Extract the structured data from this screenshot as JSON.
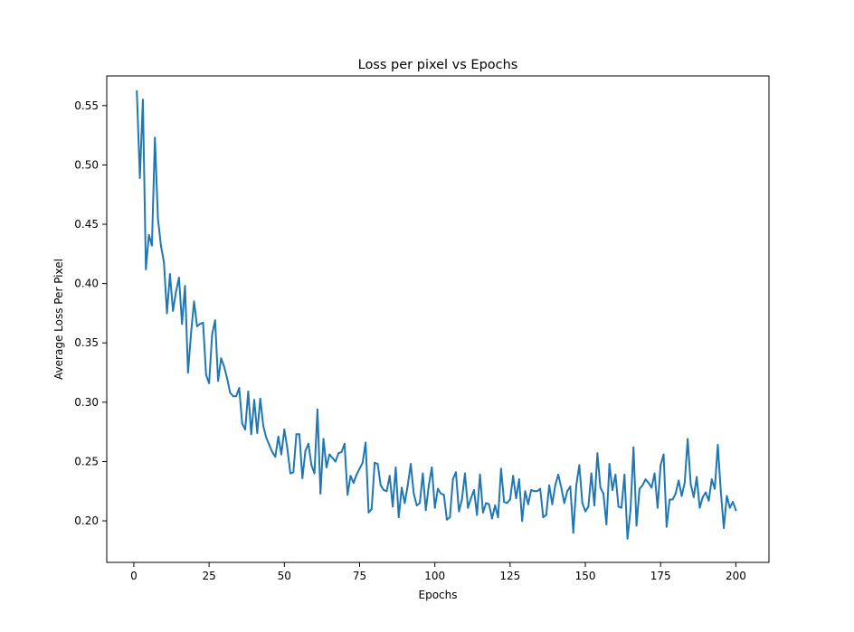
{
  "chart_data": {
    "type": "line",
    "title": "Loss per pixel vs Epochs",
    "xlabel": "Epochs",
    "ylabel": "Average Loss Per Pixel",
    "xlim": [
      -9,
      211
    ],
    "ylim": [
      0.165,
      0.575
    ],
    "xticks": [
      0,
      25,
      50,
      75,
      100,
      125,
      150,
      175,
      200
    ],
    "yticks": [
      0.2,
      0.25,
      0.3,
      0.35,
      0.4,
      0.45,
      0.5,
      0.55
    ],
    "xtick_labels": [
      "0",
      "25",
      "50",
      "75",
      "100",
      "125",
      "150",
      "175",
      "200"
    ],
    "ytick_labels": [
      "0.20",
      "0.25",
      "0.30",
      "0.35",
      "0.40",
      "0.45",
      "0.50",
      "0.55"
    ],
    "grid": false,
    "legend": null,
    "line_color": "#1f77b4",
    "x_start": 1,
    "x_step": 1,
    "values": [
      0.562,
      0.489,
      0.555,
      0.412,
      0.441,
      0.432,
      0.523,
      0.455,
      0.432,
      0.418,
      0.375,
      0.408,
      0.377,
      0.393,
      0.405,
      0.366,
      0.398,
      0.325,
      0.358,
      0.385,
      0.364,
      0.366,
      0.367,
      0.323,
      0.316,
      0.357,
      0.369,
      0.318,
      0.337,
      0.33,
      0.32,
      0.308,
      0.305,
      0.305,
      0.312,
      0.282,
      0.277,
      0.309,
      0.273,
      0.302,
      0.274,
      0.303,
      0.28,
      0.27,
      0.264,
      0.258,
      0.254,
      0.271,
      0.256,
      0.277,
      0.261,
      0.24,
      0.241,
      0.273,
      0.273,
      0.236,
      0.259,
      0.265,
      0.247,
      0.24,
      0.294,
      0.223,
      0.269,
      0.245,
      0.256,
      0.253,
      0.25,
      0.257,
      0.258,
      0.265,
      0.222,
      0.238,
      0.232,
      0.239,
      0.244,
      0.249,
      0.266,
      0.207,
      0.21,
      0.249,
      0.248,
      0.23,
      0.226,
      0.225,
      0.238,
      0.212,
      0.245,
      0.203,
      0.228,
      0.215,
      0.23,
      0.248,
      0.223,
      0.213,
      0.215,
      0.24,
      0.209,
      0.23,
      0.245,
      0.211,
      0.227,
      0.223,
      0.222,
      0.201,
      0.203,
      0.235,
      0.241,
      0.208,
      0.218,
      0.24,
      0.211,
      0.219,
      0.226,
      0.205,
      0.239,
      0.207,
      0.215,
      0.214,
      0.202,
      0.213,
      0.203,
      0.244,
      0.216,
      0.215,
      0.218,
      0.238,
      0.219,
      0.235,
      0.2,
      0.225,
      0.214,
      0.226,
      0.225,
      0.225,
      0.227,
      0.203,
      0.205,
      0.23,
      0.214,
      0.23,
      0.239,
      0.228,
      0.215,
      0.225,
      0.229,
      0.19,
      0.23,
      0.247,
      0.215,
      0.208,
      0.212,
      0.24,
      0.213,
      0.257,
      0.228,
      0.223,
      0.197,
      0.248,
      0.226,
      0.239,
      0.212,
      0.211,
      0.239,
      0.185,
      0.209,
      0.262,
      0.196,
      0.227,
      0.23,
      0.235,
      0.232,
      0.228,
      0.24,
      0.211,
      0.247,
      0.256,
      0.195,
      0.218,
      0.218,
      0.223,
      0.234,
      0.221,
      0.232,
      0.269,
      0.231,
      0.22,
      0.237,
      0.211,
      0.22,
      0.224,
      0.217,
      0.235,
      0.227,
      0.264,
      0.225,
      0.194,
      0.221,
      0.211,
      0.216,
      0.209
    ]
  }
}
